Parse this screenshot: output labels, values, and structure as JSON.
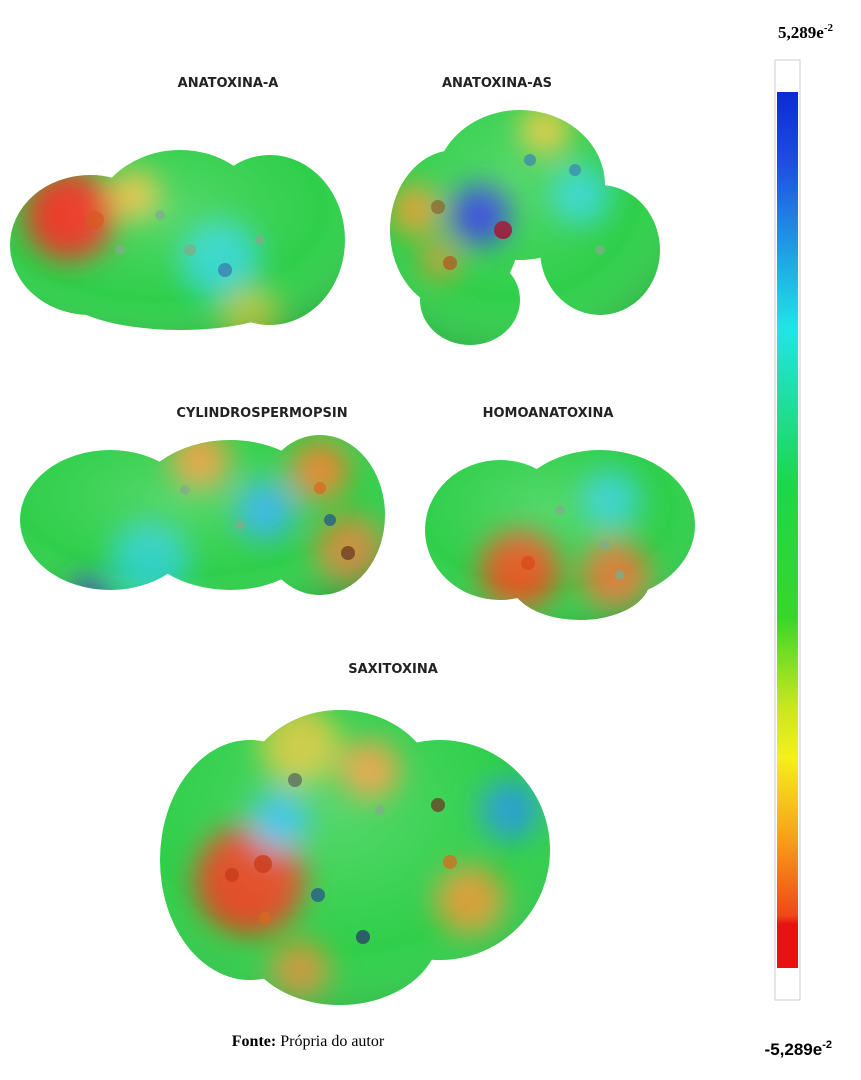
{
  "molecules": [
    {
      "name": "ANATOXINA-A"
    },
    {
      "name": "ANATOXINA-AS"
    },
    {
      "name": "CYLINDROSPERMOPSIN"
    },
    {
      "name": "HOMOANATOXINA"
    },
    {
      "name": "SAXITOXINA"
    }
  ],
  "scale": {
    "max": {
      "base": "5,289e",
      "exponent": "-2"
    },
    "min": {
      "base": "-5,289e",
      "exponent": "-2"
    }
  },
  "source": {
    "label": "Fonte:",
    "text": "Própria do autor"
  }
}
